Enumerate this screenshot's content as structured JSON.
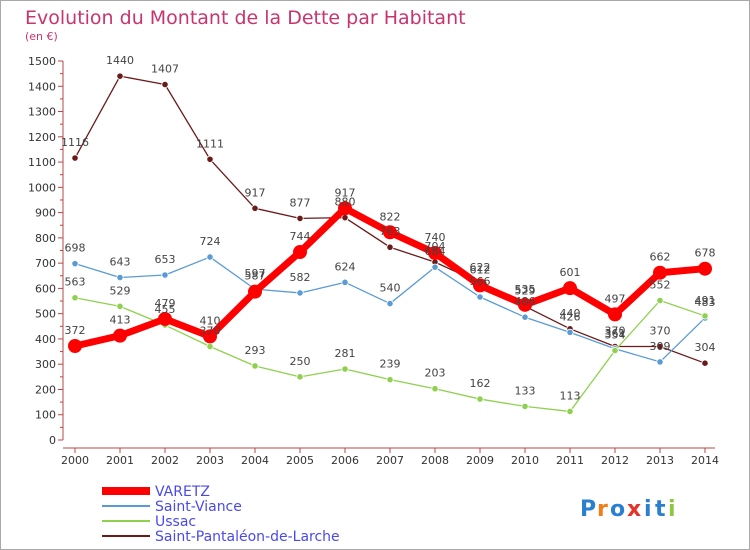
{
  "chart_data": {
    "type": "line",
    "title": "Evolution du Montant de la Dette par Habitant",
    "subtitle": "(en €)",
    "categories": [
      "2000",
      "2001",
      "2002",
      "2003",
      "2004",
      "2005",
      "2006",
      "2007",
      "2008",
      "2009",
      "2010",
      "2011",
      "2012",
      "2013",
      "2014"
    ],
    "y_ticks": [
      "0",
      "100",
      "200",
      "300",
      "400",
      "500",
      "600",
      "700",
      "800",
      "900",
      "1000",
      "1100",
      "1200",
      "1300",
      "1400",
      "1500"
    ],
    "ylim": [
      0,
      1500
    ],
    "grid": false,
    "legend_position": "bottom-left",
    "series": [
      {
        "name": "VARETZ",
        "color": "#ff0000",
        "values": [
          372,
          413,
          479,
          410,
          587,
          744,
          917,
          822,
          740,
          612,
          535,
          601,
          497,
          662,
          678
        ]
      },
      {
        "name": "Saint-Viance",
        "color": "#5b9bd5",
        "values": [
          698,
          643,
          653,
          724,
          597,
          582,
          624,
          540,
          684,
          566,
          486,
          426,
          361,
          309,
          483
        ]
      },
      {
        "name": "Ussac",
        "color": "#8fd14f",
        "values": [
          563,
          529,
          455,
          370,
          293,
          250,
          281,
          239,
          203,
          162,
          133,
          113,
          354,
          552,
          491
        ]
      },
      {
        "name": "Saint-Pantaléon-de-Larche",
        "color": "#6b1a1a",
        "values": [
          1116,
          1440,
          1407,
          1111,
          917,
          877,
          880,
          763,
          704,
          622,
          529,
          440,
          370,
          370,
          304
        ]
      }
    ]
  },
  "logo": {
    "text": "Proxiti",
    "letters": [
      "P",
      "r",
      "o",
      "x",
      "i",
      "t",
      "i"
    ],
    "colors": [
      "#2a7fd1",
      "#f07d19",
      "#2a7fd1",
      "#e63329",
      "#2a7fd1",
      "#2a7fd1",
      "#8dc63f"
    ]
  }
}
